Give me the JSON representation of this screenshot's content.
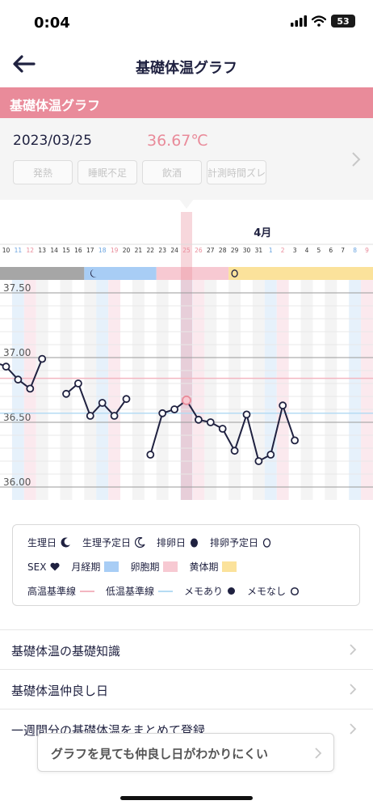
{
  "status": {
    "time": "0:04",
    "battery": "53"
  },
  "nav": {
    "title": "基礎体温グラフ"
  },
  "section": {
    "title": "基礎体温グラフ"
  },
  "info": {
    "date": "2023/03/25",
    "temperature": "36.67℃",
    "tags": [
      "発熱",
      "睡眠不足",
      "飲酒",
      "計測時間ズレ"
    ]
  },
  "chart_data": {
    "type": "line",
    "month_label": "4月",
    "x": [
      "10",
      "11",
      "12",
      "13",
      "14",
      "15",
      "16",
      "17",
      "18",
      "19",
      "20",
      "21",
      "22",
      "23",
      "24",
      "25",
      "26",
      "27",
      "28",
      "29",
      "30",
      "31",
      "1",
      "2",
      "3",
      "4",
      "5",
      "6",
      "7",
      "8",
      "9"
    ],
    "y_ticks": [
      "37.50",
      "37.00",
      "36.50",
      "36.00"
    ],
    "ylim": [
      35.95,
      37.65
    ],
    "series": [
      {
        "values": [
          36.93,
          36.83,
          36.76,
          36.99,
          null,
          36.72,
          36.8,
          36.55,
          36.65,
          36.55,
          36.68,
          null,
          36.25,
          36.57,
          36.6,
          36.67,
          36.52,
          36.5,
          36.45,
          36.28,
          36.56,
          36.2,
          36.25,
          36.63,
          36.36,
          null,
          null,
          null,
          null,
          null,
          null
        ]
      }
    ],
    "lead_in_value": 36.95,
    "selected": "25",
    "phases": [
      {
        "label": "月経期",
        "from": "17",
        "to": "22",
        "color": "#a8cdf5"
      },
      {
        "label": "卵胞期",
        "from": "23",
        "to": "28",
        "color": "#f7c9d2"
      },
      {
        "label": "黄体期",
        "from": "29",
        "to": "9",
        "color": "#fbe29b"
      }
    ],
    "high_line": 36.84,
    "low_line": 36.57,
    "grid": true
  },
  "legend": {
    "row1": [
      "生理日",
      "生理予定日",
      "排卵日",
      "排卵予定日"
    ],
    "row2": [
      "SEX",
      "月経期",
      "卵胞期",
      "黄体期"
    ],
    "row3": [
      "高温基準線",
      "低温基準線",
      "メモあり",
      "メモなし"
    ]
  },
  "list": [
    "基礎体温の基礎知識",
    "基礎体温仲良し日",
    "一週間分の基礎体温をまとめて登録"
  ],
  "banner": {
    "text": "グラフを見ても仲良し日がわかりにくい"
  },
  "colors": {
    "accent": "#e98b9a",
    "navy": "#1f2140",
    "menses": "#a8cdf5",
    "follicular": "#f7c9d2",
    "luteal": "#fbe29b"
  }
}
